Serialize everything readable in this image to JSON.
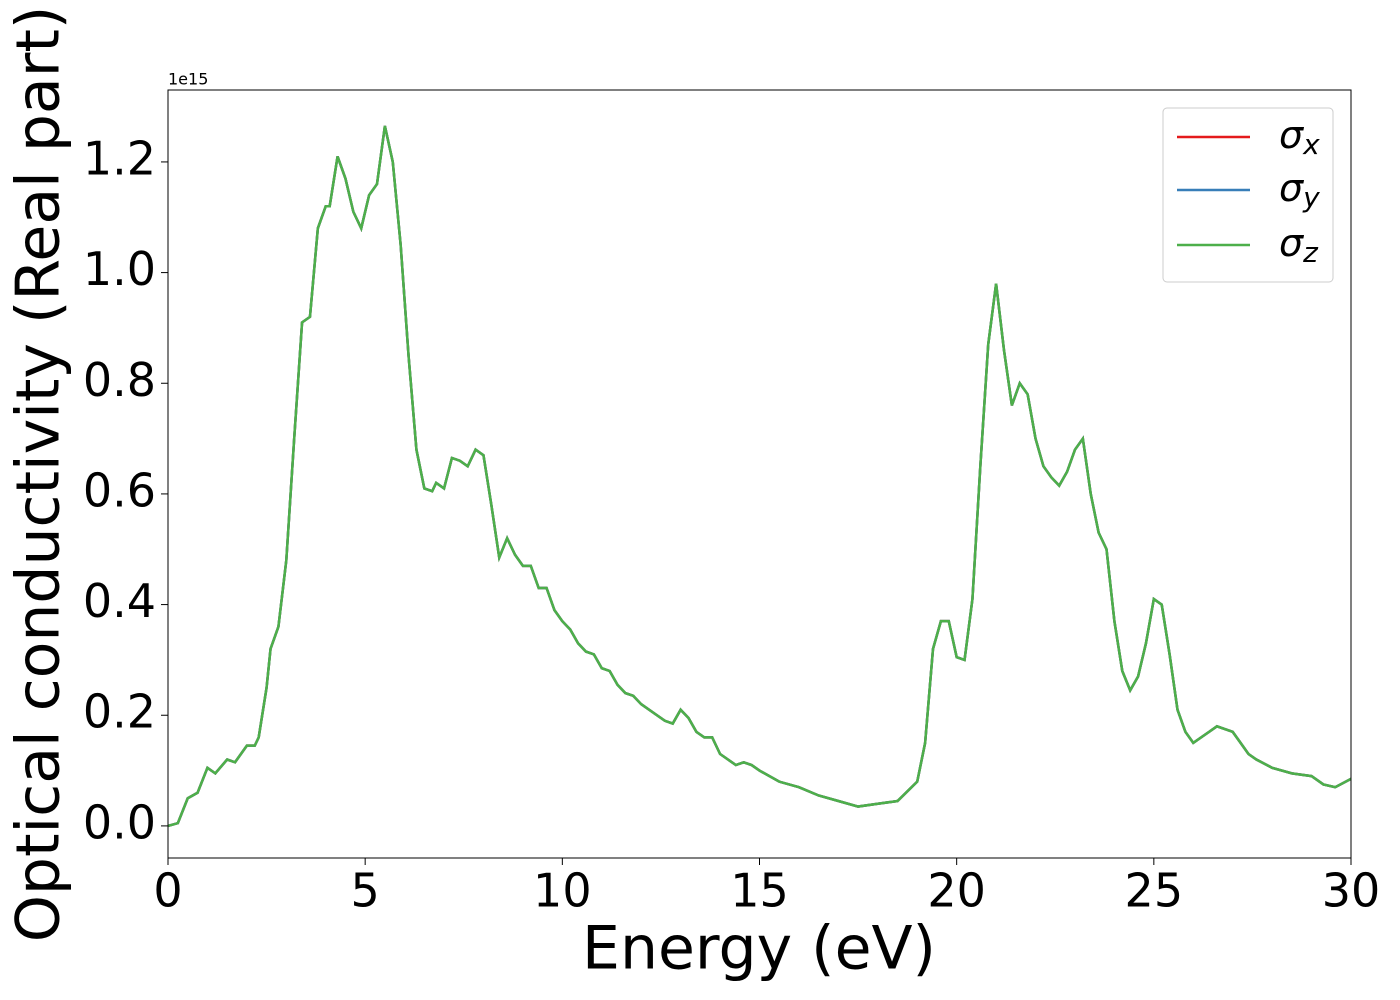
{
  "chart_data": {
    "type": "line",
    "xlabel": "Energy (eV)",
    "ylabel": "Optical conductivity (Real part)",
    "y_offset_text": "1e15",
    "x": [
      0,
      0.25,
      0.5,
      0.75,
      1.0,
      1.2,
      1.5,
      1.7,
      2.0,
      2.2,
      2.3,
      2.5,
      2.6,
      2.8,
      3.0,
      3.2,
      3.4,
      3.6,
      3.8,
      4.0,
      4.1,
      4.3,
      4.5,
      4.7,
      4.9,
      5.1,
      5.3,
      5.5,
      5.7,
      5.9,
      6.1,
      6.3,
      6.5,
      6.7,
      6.8,
      7.0,
      7.2,
      7.4,
      7.6,
      7.8,
      8.0,
      8.2,
      8.4,
      8.6,
      8.8,
      9.0,
      9.2,
      9.4,
      9.6,
      9.8,
      10.0,
      10.2,
      10.4,
      10.6,
      10.8,
      11.0,
      11.2,
      11.4,
      11.6,
      11.8,
      12.0,
      12.4,
      12.6,
      12.8,
      13.0,
      13.2,
      13.4,
      13.6,
      13.8,
      14.0,
      14.2,
      14.4,
      14.6,
      14.8,
      15.0,
      15.5,
      16.0,
      16.5,
      17.0,
      17.5,
      18.0,
      18.5,
      19.0,
      19.2,
      19.4,
      19.6,
      19.8,
      20.0,
      20.2,
      20.4,
      20.6,
      20.8,
      21.0,
      21.2,
      21.4,
      21.6,
      21.8,
      22.0,
      22.2,
      22.4,
      22.6,
      22.8,
      23.0,
      23.2,
      23.4,
      23.6,
      23.8,
      24.0,
      24.2,
      24.4,
      24.6,
      24.8,
      25.0,
      25.2,
      25.4,
      25.6,
      25.8,
      26.0,
      26.2,
      26.4,
      26.6,
      26.8,
      27.0,
      27.2,
      27.4,
      27.6,
      28.0,
      28.5,
      29.0,
      29.3,
      29.6,
      30.0
    ],
    "series": [
      {
        "name": "σx",
        "color": "#e41a1c",
        "values": [
          0.0,
          0.005,
          0.05,
          0.06,
          0.105,
          0.095,
          0.12,
          0.115,
          0.145,
          0.145,
          0.16,
          0.25,
          0.32,
          0.36,
          0.48,
          0.7,
          0.91,
          0.92,
          1.08,
          1.12,
          1.12,
          1.21,
          1.17,
          1.11,
          1.08,
          1.14,
          1.16,
          1.265,
          1.2,
          1.05,
          0.85,
          0.68,
          0.61,
          0.605,
          0.62,
          0.61,
          0.665,
          0.66,
          0.65,
          0.68,
          0.67,
          0.58,
          0.485,
          0.52,
          0.49,
          0.47,
          0.47,
          0.43,
          0.43,
          0.39,
          0.37,
          0.355,
          0.33,
          0.315,
          0.31,
          0.285,
          0.28,
          0.255,
          0.24,
          0.235,
          0.22,
          0.2,
          0.19,
          0.185,
          0.21,
          0.195,
          0.17,
          0.16,
          0.16,
          0.13,
          0.12,
          0.11,
          0.115,
          0.11,
          0.1,
          0.08,
          0.07,
          0.055,
          0.045,
          0.035,
          0.04,
          0.045,
          0.08,
          0.15,
          0.32,
          0.37,
          0.37,
          0.305,
          0.3,
          0.41,
          0.65,
          0.87,
          0.98,
          0.86,
          0.76,
          0.8,
          0.78,
          0.7,
          0.65,
          0.63,
          0.615,
          0.64,
          0.68,
          0.7,
          0.6,
          0.53,
          0.5,
          0.37,
          0.28,
          0.245,
          0.27,
          0.33,
          0.41,
          0.4,
          0.31,
          0.21,
          0.17,
          0.15,
          0.16,
          0.17,
          0.18,
          0.175,
          0.17,
          0.15,
          0.13,
          0.12,
          0.105,
          0.095,
          0.09,
          0.075,
          0.07,
          0.085
        ]
      },
      {
        "name": "σy",
        "color": "#377eb8",
        "values": [
          0.0,
          0.005,
          0.05,
          0.06,
          0.105,
          0.095,
          0.12,
          0.115,
          0.145,
          0.145,
          0.16,
          0.25,
          0.32,
          0.36,
          0.48,
          0.7,
          0.91,
          0.92,
          1.08,
          1.12,
          1.12,
          1.21,
          1.17,
          1.11,
          1.08,
          1.14,
          1.16,
          1.265,
          1.2,
          1.05,
          0.85,
          0.68,
          0.61,
          0.605,
          0.62,
          0.61,
          0.665,
          0.66,
          0.65,
          0.68,
          0.67,
          0.58,
          0.485,
          0.52,
          0.49,
          0.47,
          0.47,
          0.43,
          0.43,
          0.39,
          0.37,
          0.355,
          0.33,
          0.315,
          0.31,
          0.285,
          0.28,
          0.255,
          0.24,
          0.235,
          0.22,
          0.2,
          0.19,
          0.185,
          0.21,
          0.195,
          0.17,
          0.16,
          0.16,
          0.13,
          0.12,
          0.11,
          0.115,
          0.11,
          0.1,
          0.08,
          0.07,
          0.055,
          0.045,
          0.035,
          0.04,
          0.045,
          0.08,
          0.15,
          0.32,
          0.37,
          0.37,
          0.305,
          0.3,
          0.41,
          0.65,
          0.87,
          0.98,
          0.86,
          0.76,
          0.8,
          0.78,
          0.7,
          0.65,
          0.63,
          0.615,
          0.64,
          0.68,
          0.7,
          0.6,
          0.53,
          0.5,
          0.37,
          0.28,
          0.245,
          0.27,
          0.33,
          0.41,
          0.4,
          0.31,
          0.21,
          0.17,
          0.15,
          0.16,
          0.17,
          0.18,
          0.175,
          0.17,
          0.15,
          0.13,
          0.12,
          0.105,
          0.095,
          0.09,
          0.075,
          0.07,
          0.085
        ]
      },
      {
        "name": "σz",
        "color": "#4daf4a",
        "values": [
          0.0,
          0.005,
          0.05,
          0.06,
          0.105,
          0.095,
          0.12,
          0.115,
          0.145,
          0.145,
          0.16,
          0.25,
          0.32,
          0.36,
          0.48,
          0.7,
          0.91,
          0.92,
          1.08,
          1.12,
          1.12,
          1.21,
          1.17,
          1.11,
          1.08,
          1.14,
          1.16,
          1.265,
          1.2,
          1.05,
          0.85,
          0.68,
          0.61,
          0.605,
          0.62,
          0.61,
          0.665,
          0.66,
          0.65,
          0.68,
          0.67,
          0.58,
          0.485,
          0.52,
          0.49,
          0.47,
          0.47,
          0.43,
          0.43,
          0.39,
          0.37,
          0.355,
          0.33,
          0.315,
          0.31,
          0.285,
          0.28,
          0.255,
          0.24,
          0.235,
          0.22,
          0.2,
          0.19,
          0.185,
          0.21,
          0.195,
          0.17,
          0.16,
          0.16,
          0.13,
          0.12,
          0.11,
          0.115,
          0.11,
          0.1,
          0.08,
          0.07,
          0.055,
          0.045,
          0.035,
          0.04,
          0.045,
          0.08,
          0.15,
          0.32,
          0.37,
          0.37,
          0.305,
          0.3,
          0.41,
          0.65,
          0.87,
          0.98,
          0.86,
          0.76,
          0.8,
          0.78,
          0.7,
          0.65,
          0.63,
          0.615,
          0.64,
          0.68,
          0.7,
          0.6,
          0.53,
          0.5,
          0.37,
          0.28,
          0.245,
          0.27,
          0.33,
          0.41,
          0.4,
          0.31,
          0.21,
          0.17,
          0.15,
          0.16,
          0.17,
          0.18,
          0.175,
          0.17,
          0.15,
          0.13,
          0.12,
          0.105,
          0.095,
          0.09,
          0.075,
          0.07,
          0.085
        ]
      }
    ],
    "xlim": [
      0,
      30
    ],
    "xticks": [
      0,
      5,
      10,
      15,
      20,
      25,
      30
    ],
    "ylim": [
      -0.058,
      1.33
    ],
    "yticks": [
      {
        "value": 0,
        "label": "0.0"
      },
      0.2,
      0.4,
      0.6,
      0.8,
      {
        "value": 1,
        "label": "1.0"
      },
      1.2
    ],
    "grid": false,
    "legend": "upper right"
  }
}
